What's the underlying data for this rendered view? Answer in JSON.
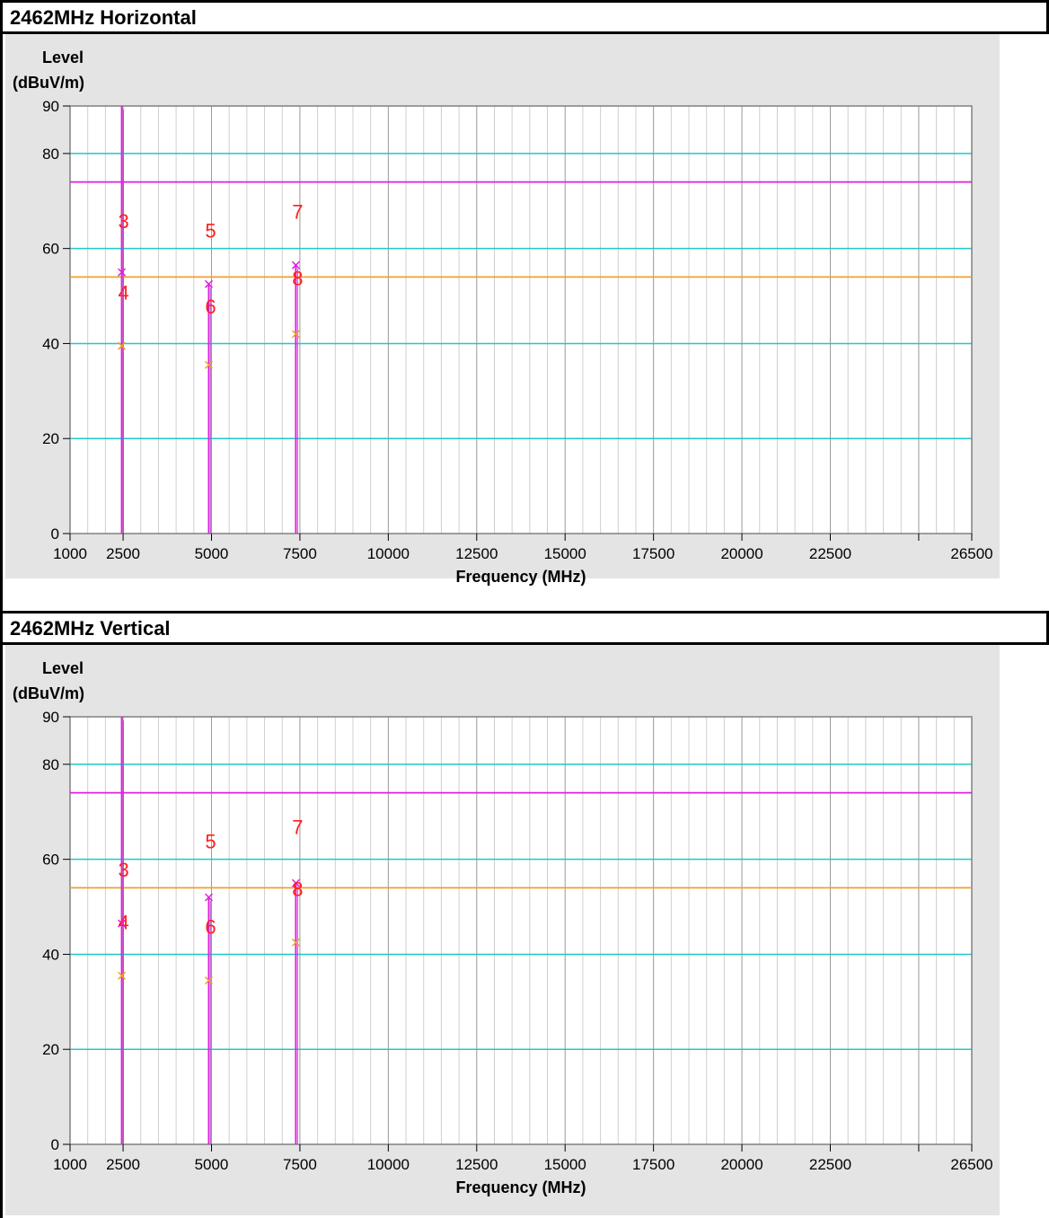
{
  "chart_data": [
    {
      "type": "scatter",
      "title": "2462MHz Horizontal",
      "ylabel_line1": "Level",
      "ylabel_line2": "(dBuV/m)",
      "xlabel": "Frequency (MHz)",
      "xlim": [
        1000,
        26500
      ],
      "ylim": [
        0,
        90
      ],
      "xticks": [
        1000,
        2500,
        5000,
        7500,
        10000,
        12500,
        15000,
        17500,
        20000,
        22500,
        26500
      ],
      "yticks": [
        0,
        20,
        40,
        60,
        80,
        90
      ],
      "limit_lines": [
        {
          "value": 74,
          "color": "#e020e0"
        },
        {
          "value": 54,
          "color": "#f0a030"
        }
      ],
      "markers": [
        {
          "label": "3",
          "x": 2462,
          "y": 66
        },
        {
          "label": "4",
          "x": 2462,
          "y": 51
        },
        {
          "label": "5",
          "x": 4924,
          "y": 64
        },
        {
          "label": "6",
          "x": 4924,
          "y": 48
        },
        {
          "label": "7",
          "x": 7386,
          "y": 68
        },
        {
          "label": "8",
          "x": 7386,
          "y": 54
        }
      ],
      "peak_points": [
        {
          "x": 2462,
          "y": 55
        },
        {
          "x": 4924,
          "y": 52.5
        },
        {
          "x": 7386,
          "y": 56.5
        }
      ],
      "average_points": [
        {
          "x": 2462,
          "y": 39.5
        },
        {
          "x": 4924,
          "y": 35.5
        },
        {
          "x": 7386,
          "y": 42
        }
      ],
      "spectrum_lines": [
        {
          "x": 2462,
          "top": 90
        },
        {
          "x": 4924,
          "top": 52.5
        },
        {
          "x": 7386,
          "top": 56.5
        }
      ]
    },
    {
      "type": "scatter",
      "title": "2462MHz Vertical",
      "ylabel_line1": "Level",
      "ylabel_line2": "(dBuV/m)",
      "xlabel": "Frequency (MHz)",
      "xlim": [
        1000,
        26500
      ],
      "ylim": [
        0,
        90
      ],
      "xticks": [
        1000,
        2500,
        5000,
        7500,
        10000,
        12500,
        15000,
        17500,
        20000,
        22500,
        26500
      ],
      "yticks": [
        0,
        20,
        40,
        60,
        80,
        90
      ],
      "limit_lines": [
        {
          "value": 74,
          "color": "#e020e0"
        },
        {
          "value": 54,
          "color": "#f0a030"
        }
      ],
      "markers": [
        {
          "label": "3",
          "x": 2462,
          "y": 58
        },
        {
          "label": "4",
          "x": 2462,
          "y": 47
        },
        {
          "label": "5",
          "x": 4924,
          "y": 64
        },
        {
          "label": "6",
          "x": 4924,
          "y": 46
        },
        {
          "label": "7",
          "x": 7386,
          "y": 67
        },
        {
          "label": "8",
          "x": 7386,
          "y": 54
        }
      ],
      "peak_points": [
        {
          "x": 2462,
          "y": 46.5
        },
        {
          "x": 4924,
          "y": 52
        },
        {
          "x": 7386,
          "y": 55
        }
      ],
      "average_points": [
        {
          "x": 2462,
          "y": 35.5
        },
        {
          "x": 4924,
          "y": 34.5
        },
        {
          "x": 7386,
          "y": 42.5
        }
      ],
      "spectrum_lines": [
        {
          "x": 2462,
          "top": 90
        },
        {
          "x": 4924,
          "top": 52
        },
        {
          "x": 7386,
          "top": 55
        }
      ]
    }
  ]
}
